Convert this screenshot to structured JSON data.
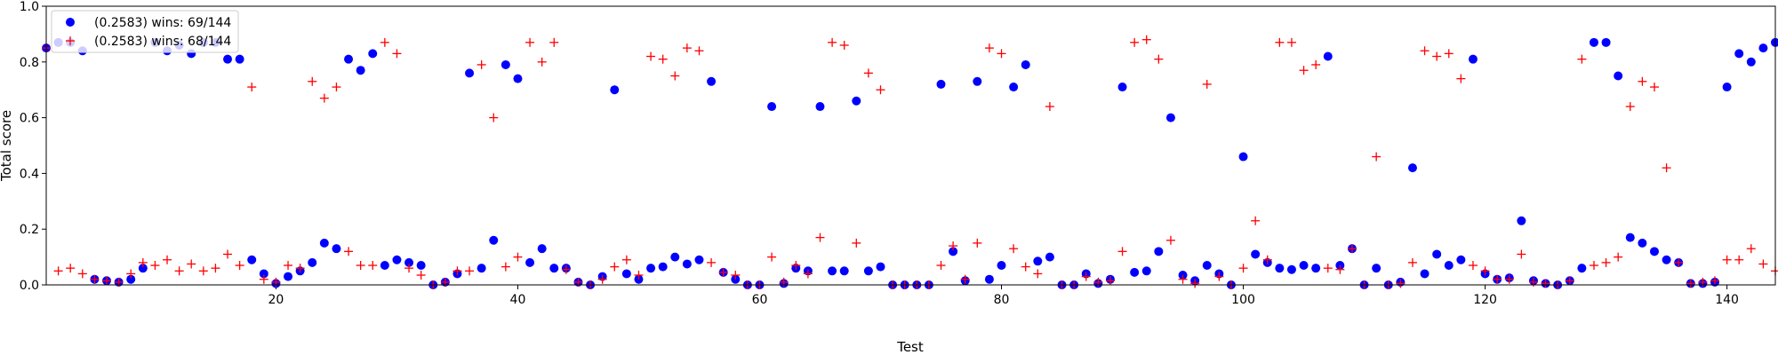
{
  "chart_data": {
    "type": "scatter",
    "title": "",
    "xlabel": "Test",
    "ylabel": "Total score",
    "xlim": [
      1,
      144
    ],
    "ylim": [
      0,
      1.0
    ],
    "xticks": [
      20,
      40,
      60,
      80,
      100,
      120,
      140
    ],
    "yticks": [
      0.0,
      0.2,
      0.4,
      0.6,
      0.8,
      1.0
    ],
    "xtick_labels": [
      "20",
      "40",
      "60",
      "80",
      "100",
      "120",
      "140"
    ],
    "ytick_labels": [
      "0.0",
      "0.2",
      "0.4",
      "0.6",
      "0.8",
      "1.0"
    ],
    "grid": false,
    "legend_position": "top-left",
    "series": [
      {
        "name": "(0.2583) wins: 69/144",
        "marker": "circle",
        "color": "#0000ff",
        "x": [
          1,
          2,
          3,
          4,
          5,
          6,
          7,
          8,
          9,
          10,
          11,
          12,
          13,
          14,
          15,
          16,
          17,
          18,
          19,
          20,
          21,
          22,
          23,
          24,
          25,
          26,
          27,
          28,
          29,
          30,
          31,
          32,
          33,
          34,
          35,
          36,
          37,
          38,
          39,
          40,
          41,
          42,
          43,
          44,
          45,
          46,
          47,
          48,
          49,
          50,
          51,
          52,
          53,
          54,
          55,
          56,
          57,
          58,
          59,
          60,
          61,
          62,
          63,
          64,
          65,
          66,
          67,
          68,
          69,
          70,
          71,
          72,
          73,
          74,
          75,
          76,
          77,
          78,
          79,
          80,
          81,
          82,
          83,
          84,
          85,
          86,
          87,
          88,
          89,
          90,
          91,
          92,
          93,
          94,
          95,
          96,
          97,
          98,
          99,
          100,
          101,
          102,
          103,
          104,
          105,
          106,
          107,
          108,
          109,
          110,
          111,
          112,
          113,
          114,
          115,
          116,
          117,
          118,
          119,
          120,
          121,
          122,
          123,
          124,
          125,
          126,
          127,
          128,
          129,
          130,
          131,
          132,
          133,
          134,
          135,
          136,
          137,
          138,
          139,
          140,
          141,
          142,
          143,
          144
        ],
        "y": [
          0.85,
          0.87,
          0.87,
          0.84,
          0.02,
          0.015,
          0.01,
          0.02,
          0.06,
          0.87,
          0.84,
          0.86,
          0.83,
          0.87,
          0.87,
          0.81,
          0.81,
          0.09,
          0.04,
          0.005,
          0.03,
          0.05,
          0.08,
          0.15,
          0.13,
          0.81,
          0.77,
          0.83,
          0.07,
          0.09,
          0.08,
          0.07,
          0.0,
          0.01,
          0.04,
          0.76,
          0.06,
          0.16,
          0.79,
          0.74,
          0.08,
          0.13,
          0.06,
          0.06,
          0.01,
          0.0,
          0.03,
          0.7,
          0.04,
          0.02,
          0.06,
          0.065,
          0.1,
          0.075,
          0.09,
          0.73,
          0.045,
          0.02,
          0.0,
          0.0,
          0.64,
          0.005,
          0.06,
          0.05,
          0.64,
          0.05,
          0.05,
          0.66,
          0.05,
          0.065,
          0.0,
          0.0,
          0.0,
          0.0,
          0.72,
          0.12,
          0.015,
          0.73,
          0.02,
          0.07,
          0.71,
          0.79,
          0.085,
          0.1,
          0.0,
          0.0,
          0.04,
          0.005,
          0.02,
          0.71,
          0.045,
          0.05,
          0.12,
          0.6,
          0.035,
          0.015,
          0.07,
          0.04,
          0.0,
          0.46,
          0.11,
          0.08,
          0.06,
          0.055,
          0.07,
          0.06,
          0.82,
          0.07,
          0.13,
          0.0,
          0.06,
          0.0,
          0.01,
          0.42,
          0.04,
          0.11,
          0.07,
          0.09,
          0.81,
          0.04,
          0.02,
          0.025,
          0.23,
          0.015,
          0.005,
          0.0,
          0.015,
          0.06,
          0.87,
          0.87,
          0.75,
          0.17,
          0.15,
          0.12,
          0.09,
          0.08,
          0.005,
          0.005,
          0.01,
          0.71,
          0.83,
          0.8,
          0.85,
          0.87
        ]
      },
      {
        "name": "(0.2583) wins: 68/144",
        "marker": "plus",
        "color": "#ff0000",
        "x": [
          1,
          2,
          3,
          4,
          5,
          6,
          7,
          8,
          9,
          10,
          11,
          12,
          13,
          14,
          15,
          16,
          17,
          18,
          19,
          20,
          21,
          22,
          23,
          24,
          25,
          26,
          27,
          28,
          29,
          30,
          31,
          32,
          33,
          34,
          35,
          36,
          37,
          38,
          39,
          40,
          41,
          42,
          43,
          44,
          45,
          46,
          47,
          48,
          49,
          50,
          51,
          52,
          53,
          54,
          55,
          56,
          57,
          58,
          59,
          60,
          61,
          62,
          63,
          64,
          65,
          66,
          67,
          68,
          69,
          70,
          71,
          72,
          73,
          74,
          75,
          76,
          77,
          78,
          79,
          80,
          81,
          82,
          83,
          84,
          85,
          86,
          87,
          88,
          89,
          90,
          91,
          92,
          93,
          94,
          95,
          96,
          97,
          98,
          99,
          100,
          101,
          102,
          103,
          104,
          105,
          106,
          107,
          108,
          109,
          110,
          111,
          112,
          113,
          114,
          115,
          116,
          117,
          118,
          119,
          120,
          121,
          122,
          123,
          124,
          125,
          126,
          127,
          128,
          129,
          130,
          131,
          132,
          133,
          134,
          135,
          136,
          137,
          138,
          139,
          140,
          141,
          142,
          143,
          144
        ],
        "y": [
          0.85,
          0.05,
          0.06,
          0.04,
          0.02,
          0.015,
          0.01,
          0.04,
          0.08,
          0.07,
          0.09,
          0.05,
          0.075,
          0.05,
          0.06,
          0.11,
          0.07,
          0.71,
          0.02,
          0.01,
          0.07,
          0.06,
          0.73,
          0.67,
          0.71,
          0.12,
          0.07,
          0.07,
          0.87,
          0.83,
          0.06,
          0.035,
          0.0,
          0.01,
          0.05,
          0.05,
          0.79,
          0.6,
          0.065,
          0.1,
          0.87,
          0.8,
          0.87,
          0.055,
          0.01,
          0.0,
          0.02,
          0.065,
          0.09,
          0.035,
          0.82,
          0.81,
          0.75,
          0.85,
          0.84,
          0.08,
          0.045,
          0.035,
          0.0,
          0.0,
          0.1,
          0.01,
          0.07,
          0.04,
          0.17,
          0.87,
          0.86,
          0.15,
          0.76,
          0.7,
          0.0,
          0.0,
          0.0,
          0.0,
          0.07,
          0.14,
          0.02,
          0.15,
          0.85,
          0.83,
          0.13,
          0.065,
          0.04,
          0.64,
          0.0,
          0.0,
          0.03,
          0.01,
          0.015,
          0.12,
          0.87,
          0.88,
          0.81,
          0.16,
          0.02,
          0.005,
          0.72,
          0.03,
          0.0,
          0.06,
          0.23,
          0.09,
          0.87,
          0.87,
          0.77,
          0.79,
          0.06,
          0.055,
          0.13,
          0.0,
          0.46,
          0.0,
          0.005,
          0.08,
          0.84,
          0.82,
          0.83,
          0.74,
          0.07,
          0.05,
          0.02,
          0.02,
          0.11,
          0.01,
          0.005,
          0.0,
          0.015,
          0.81,
          0.07,
          0.08,
          0.1,
          0.64,
          0.73,
          0.71,
          0.42,
          0.08,
          0.005,
          0.01,
          0.015,
          0.09,
          0.09,
          0.13,
          0.075,
          0.05
        ]
      }
    ]
  }
}
